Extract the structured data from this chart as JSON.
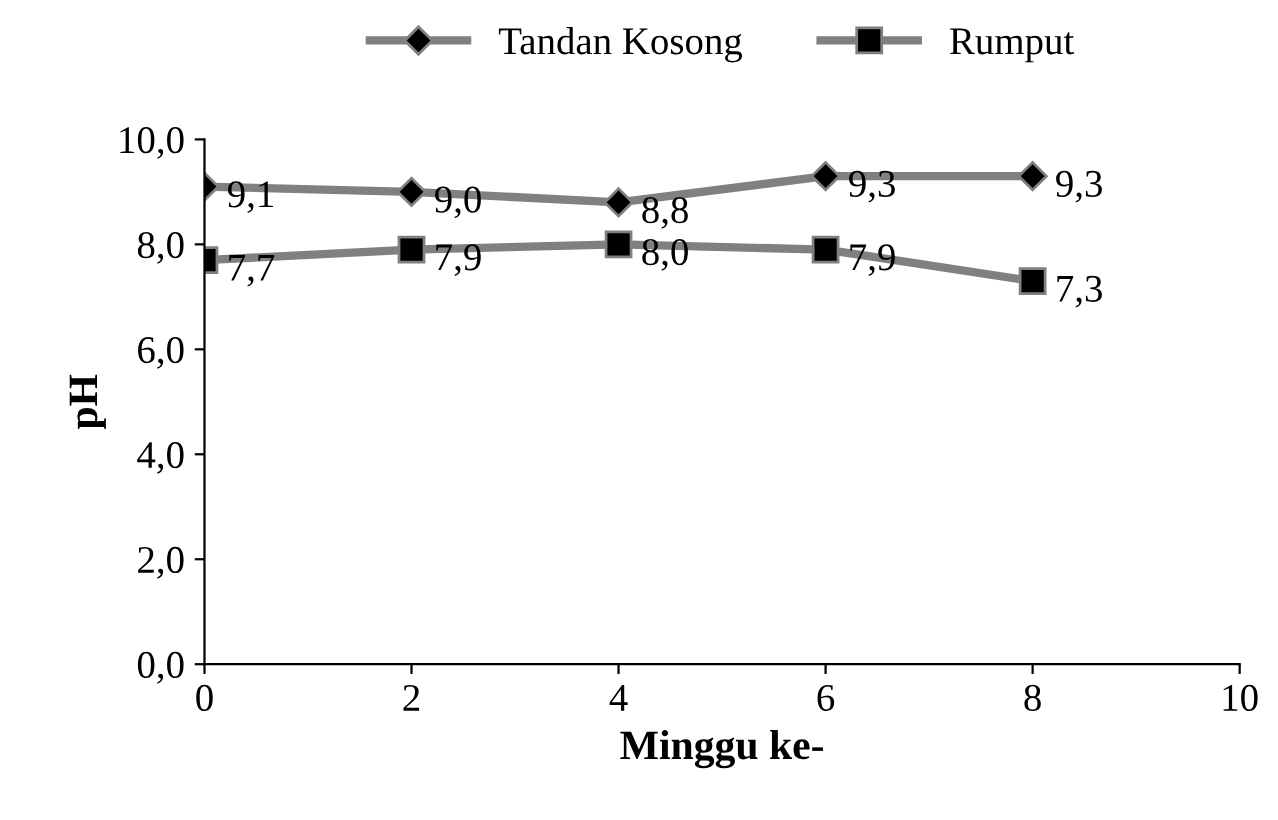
{
  "chart_data": {
    "type": "line",
    "xlabel": "Minggu ke-",
    "ylabel": "pH",
    "x": [
      0,
      2,
      4,
      6,
      8
    ],
    "series": [
      {
        "name": "Tandan Kosong",
        "color": "#808080",
        "marker": "diamond",
        "values": [
          9.1,
          9.0,
          8.8,
          9.3,
          9.3
        ],
        "value_labels": [
          "9,1",
          "9,0",
          "8,8",
          "9,3",
          "9,3"
        ]
      },
      {
        "name": "Rumput",
        "color": "#808080",
        "marker": "square",
        "values": [
          7.7,
          7.9,
          8.0,
          7.9,
          7.3
        ],
        "value_labels": [
          "7,7",
          "7,9",
          "8,0",
          "7,9",
          "7,3"
        ]
      }
    ],
    "xlim": [
      0,
      10
    ],
    "xticks": [
      0,
      2,
      4,
      6,
      8,
      10
    ],
    "ylim": [
      0,
      10
    ],
    "yticks": [
      {
        "value": 0,
        "label": "0,0"
      },
      {
        "value": 2,
        "label": "2,0"
      },
      {
        "value": 4,
        "label": "4,0"
      },
      {
        "value": 6,
        "label": "6,0"
      },
      {
        "value": 8,
        "label": "8,0"
      },
      {
        "value": 10,
        "label": "10,0"
      }
    ],
    "grid": false,
    "legend": "top",
    "line_style": "solid"
  }
}
